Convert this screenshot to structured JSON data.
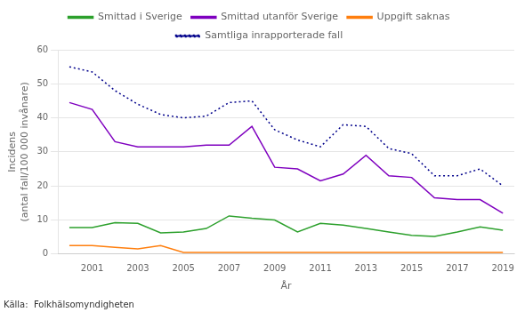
{
  "chart_data": {
    "type": "line",
    "xlabel": "År",
    "ylabel": [
      "Incidens",
      "(antal fall/100 000 invånare)"
    ],
    "annotations": [
      "Källa:  Folkhälsomyndigheten"
    ],
    "x": [
      2000,
      2001,
      2002,
      2003,
      2004,
      2005,
      2006,
      2007,
      2008,
      2009,
      2010,
      2011,
      2012,
      2013,
      2014,
      2015,
      2016,
      2017,
      2018,
      2019
    ],
    "series": [
      {
        "name": "Smittad i Sverige",
        "color": "#2ca02c",
        "line_style": "solid",
        "values": [
          7.8,
          7.8,
          9.2,
          9.0,
          6.2,
          6.5,
          7.5,
          11.2,
          10.5,
          10.0,
          6.5,
          9.0,
          8.5,
          7.5,
          6.5,
          5.5,
          5.2,
          6.5,
          8.0,
          7.0
        ]
      },
      {
        "name": "Smittad utanför Sverige",
        "color": "#7f00bf",
        "line_style": "solid",
        "values": [
          44.5,
          42.5,
          33.0,
          31.5,
          31.5,
          31.5,
          32.0,
          32.0,
          37.5,
          25.5,
          25.0,
          21.5,
          23.5,
          29.0,
          23.0,
          22.5,
          16.5,
          16.0,
          16.0,
          12.0
        ]
      },
      {
        "name": "Uppgift saknas",
        "color": "#ff7f0e",
        "line_style": "solid",
        "values": [
          2.5,
          2.5,
          2.0,
          1.5,
          2.5,
          0.5,
          0.5,
          0.5,
          0.5,
          0.5,
          0.5,
          0.5,
          0.5,
          0.5,
          0.5,
          0.5,
          0.5,
          0.5,
          0.5,
          0.5
        ]
      },
      {
        "name": "Samtliga inrapporterade fall",
        "color": "#00008b",
        "line_style": "dotted",
        "values": [
          55.0,
          53.5,
          48.0,
          44.0,
          41.0,
          40.0,
          40.5,
          44.5,
          45.0,
          36.5,
          33.5,
          31.5,
          38.0,
          37.5,
          31.0,
          29.5,
          23.0,
          23.0,
          25.0,
          20.0
        ]
      }
    ],
    "xlim": [
      1999.5,
      2019.5
    ],
    "xticks": [
      2001,
      2003,
      2005,
      2007,
      2009,
      2011,
      2013,
      2015,
      2017,
      2019
    ],
    "ylim": [
      0,
      60
    ],
    "yticks": [
      0,
      10,
      20,
      30,
      40,
      50,
      60
    ],
    "grid": "y",
    "legend": "top"
  }
}
